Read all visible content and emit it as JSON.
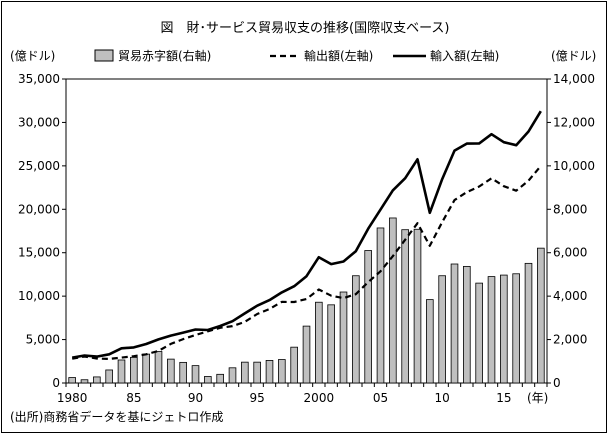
{
  "chart_data": {
    "type": "bar+line",
    "title": "図　財･サービス貿易収支の推移(国際収支ベース)",
    "left_unit": "(億ドル)",
    "right_unit": "(億ドル)",
    "year_unit": "(年)",
    "source": "(出所)商務省データを基にジェトロ作成",
    "x": [
      1980,
      1981,
      1982,
      1983,
      1984,
      1985,
      1986,
      1987,
      1988,
      1989,
      1990,
      1991,
      1992,
      1993,
      1994,
      1995,
      1996,
      1997,
      1998,
      1999,
      2000,
      2001,
      2002,
      2003,
      2004,
      2005,
      2006,
      2007,
      2008,
      2009,
      2010,
      2011,
      2012,
      2013,
      2014,
      2015,
      2016,
      2017,
      2018
    ],
    "x_tick_labels": [
      {
        "year": 1980,
        "label": "1980"
      },
      {
        "year": 1985,
        "label": "85"
      },
      {
        "year": 1990,
        "label": "90"
      },
      {
        "year": 1995,
        "label": "95"
      },
      {
        "year": 2000,
        "label": "2000"
      },
      {
        "year": 2005,
        "label": "05"
      },
      {
        "year": 2010,
        "label": "10"
      },
      {
        "year": 2015,
        "label": "15"
      }
    ],
    "y_left": {
      "min": 0,
      "max": 35000,
      "ticks": [
        0,
        5000,
        10000,
        15000,
        20000,
        25000,
        30000,
        35000
      ],
      "tick_labels": [
        "0",
        "5,000",
        "10,000",
        "15,000",
        "20,000",
        "25,000",
        "30,000",
        "35,000"
      ]
    },
    "y_right": {
      "min": 0,
      "max": 14000,
      "ticks": [
        0,
        2000,
        4000,
        6000,
        8000,
        10000,
        12000,
        14000
      ],
      "tick_labels": [
        "0",
        "2,000",
        "4,000",
        "6,000",
        "8,000",
        "10,000",
        "12,000",
        "14,000"
      ]
    },
    "legend_position": "top",
    "grid": false,
    "series": [
      {
        "name": "貿易赤字額(右軸)",
        "type": "bar",
        "axis": "right",
        "color": "#bfbfbf",
        "values": [
          250,
          150,
          280,
          600,
          1060,
          1180,
          1330,
          1450,
          1100,
          950,
          800,
          300,
          400,
          700,
          960,
          960,
          1040,
          1080,
          1650,
          2620,
          3720,
          3600,
          4190,
          4940,
          6100,
          7140,
          7600,
          7060,
          7080,
          3840,
          4940,
          5480,
          5370,
          4600,
          4900,
          4970,
          5030,
          5510,
          6210
        ]
      },
      {
        "name": "輸出額(左軸)",
        "type": "line",
        "axis": "left",
        "style": "dashed",
        "color": "#000000",
        "values": [
          2800,
          3050,
          2820,
          2770,
          2920,
          3090,
          3300,
          3700,
          4500,
          5050,
          5530,
          5950,
          6350,
          6550,
          7030,
          7940,
          8520,
          9340,
          9330,
          9670,
          10760,
          10050,
          9780,
          10220,
          11620,
          12860,
          14600,
          16500,
          18400,
          15800,
          18530,
          21060,
          21980,
          22620,
          23570,
          22660,
          22140,
          23290,
          25000
        ]
      },
      {
        "name": "輸入額(左軸)",
        "type": "line",
        "axis": "left",
        "style": "solid",
        "color": "#000000",
        "values": [
          2930,
          3170,
          3040,
          3300,
          4000,
          4100,
          4490,
          5020,
          5460,
          5800,
          6160,
          6100,
          6560,
          7120,
          8010,
          8900,
          9550,
          10430,
          11150,
          12300,
          14480,
          13690,
          13990,
          15170,
          17760,
          19960,
          22180,
          23580,
          25760,
          19590,
          23480,
          26760,
          27560,
          27580,
          28650,
          27720,
          27380,
          28960,
          31290
        ]
      }
    ]
  }
}
